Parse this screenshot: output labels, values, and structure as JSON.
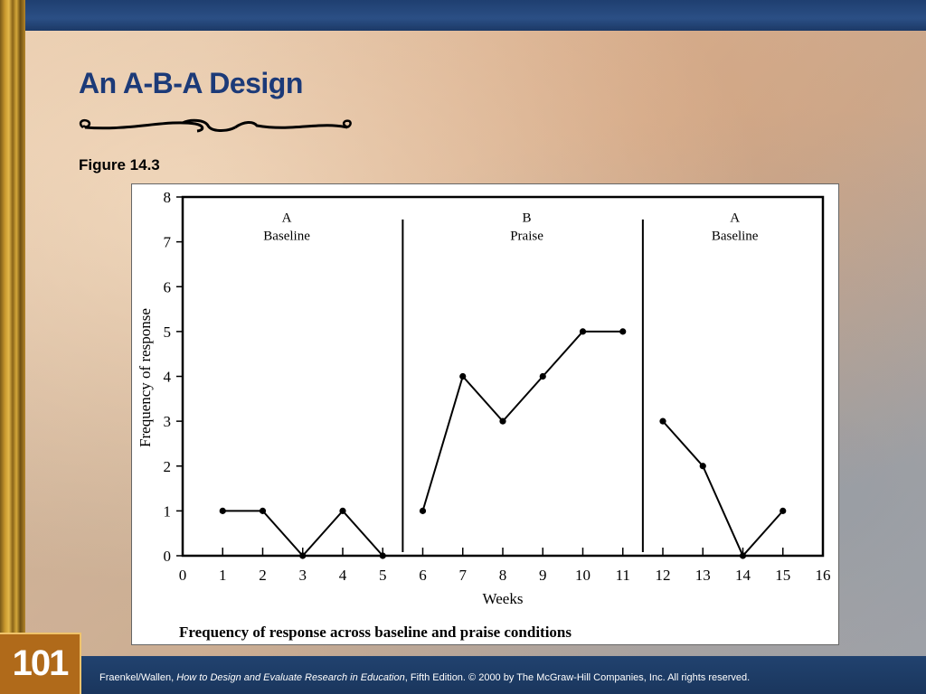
{
  "slide": {
    "title": "An A-B-A Design",
    "figure_label": "Figure 14.3",
    "slide_number": "101",
    "footer": {
      "prefix": "Fraenkel/Wallen, ",
      "book_title": "How to Design and Evaluate Research in Education",
      "suffix": ", Fifth Edition. © 2000 by The McGraw-Hill Companies, Inc. All rights reserved."
    }
  },
  "chart_data": {
    "type": "line",
    "title": "Frequency of response across baseline and praise conditions",
    "xlabel": "Weeks",
    "ylabel": "Frequency of response",
    "xlim": [
      0,
      16
    ],
    "ylim": [
      0,
      8
    ],
    "xticks": [
      0,
      1,
      2,
      3,
      4,
      5,
      6,
      7,
      8,
      9,
      10,
      11,
      12,
      13,
      14,
      15,
      16
    ],
    "yticks": [
      0,
      1,
      2,
      3,
      4,
      5,
      6,
      7,
      8
    ],
    "grid": false,
    "phase_dividers_x": [
      5.5,
      11.5
    ],
    "phases": [
      {
        "letter": "A",
        "label": "Baseline",
        "x_center": 2.6
      },
      {
        "letter": "B",
        "label": "Praise",
        "x_center": 8.6
      },
      {
        "letter": "A",
        "label": "Baseline",
        "x_center": 13.8
      }
    ],
    "segments": [
      {
        "x": [
          1,
          2,
          3,
          4,
          5
        ],
        "y": [
          1,
          1,
          0,
          1,
          0
        ]
      },
      {
        "x": [
          6,
          7,
          8,
          9,
          10,
          11
        ],
        "y": [
          1,
          4,
          3,
          4,
          5,
          5
        ]
      },
      {
        "x": [
          12,
          13,
          14,
          15
        ],
        "y": [
          3,
          2,
          0,
          1
        ]
      }
    ]
  }
}
